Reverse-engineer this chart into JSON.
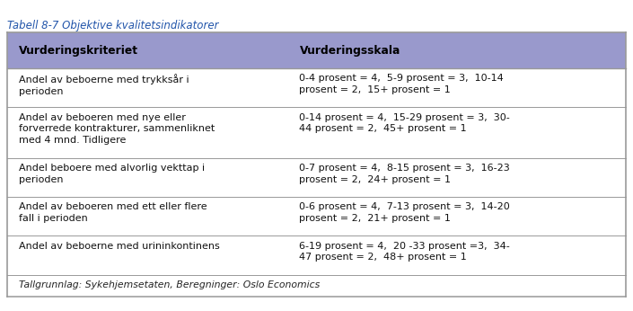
{
  "title": "Tabell 8-7 Objektive kvalitetsindikatorer",
  "header": [
    "Vurderingskriteriet",
    "Vurderingsskala"
  ],
  "rows": [
    [
      "Andel av beboerne med trykksår i\nperioden",
      "0-4 prosent = 4,  5-9 prosent = 3,  10-14\nprosent = 2,  15+ prosent = 1"
    ],
    [
      "Andel av beboeren med nye eller\nforverrede kontrakturer, sammenliknet\nmed 4 mnd. Tidligere",
      "0-14 prosent = 4,  15-29 prosent = 3,  30-\n44 prosent = 2,  45+ prosent = 1"
    ],
    [
      "Andel beboere med alvorlig vekttap i\nperioden",
      "0-7 prosent = 4,  8-15 prosent = 3,  16-23\nprosent = 2,  24+ prosent = 1"
    ],
    [
      "Andel av beboeren med ett eller flere\nfall i perioden",
      "0-6 prosent = 4,  7-13 prosent = 3,  14-20\nprosent = 2,  21+ prosent = 1"
    ],
    [
      "Andel av beboerne med urininkontinens",
      "6-19 prosent = 4,  20 -33 prosent =3,  34-\n47 prosent = 2,  48+ prosent = 1"
    ]
  ],
  "footer": "Tallgrunnlag: Sykehjemsetaten, Beregninger: Oslo Economics",
  "header_bg": "#9999cc",
  "outer_bg": "#ffffff",
  "title_color": "#2255aa",
  "border_color": "#999999",
  "col_split": 0.455,
  "fig_width": 7.05,
  "fig_height": 3.46,
  "dpi": 100,
  "title_fontsize": 8.5,
  "header_fontsize": 8.8,
  "row_fontsize": 8.0,
  "footer_fontsize": 7.8
}
